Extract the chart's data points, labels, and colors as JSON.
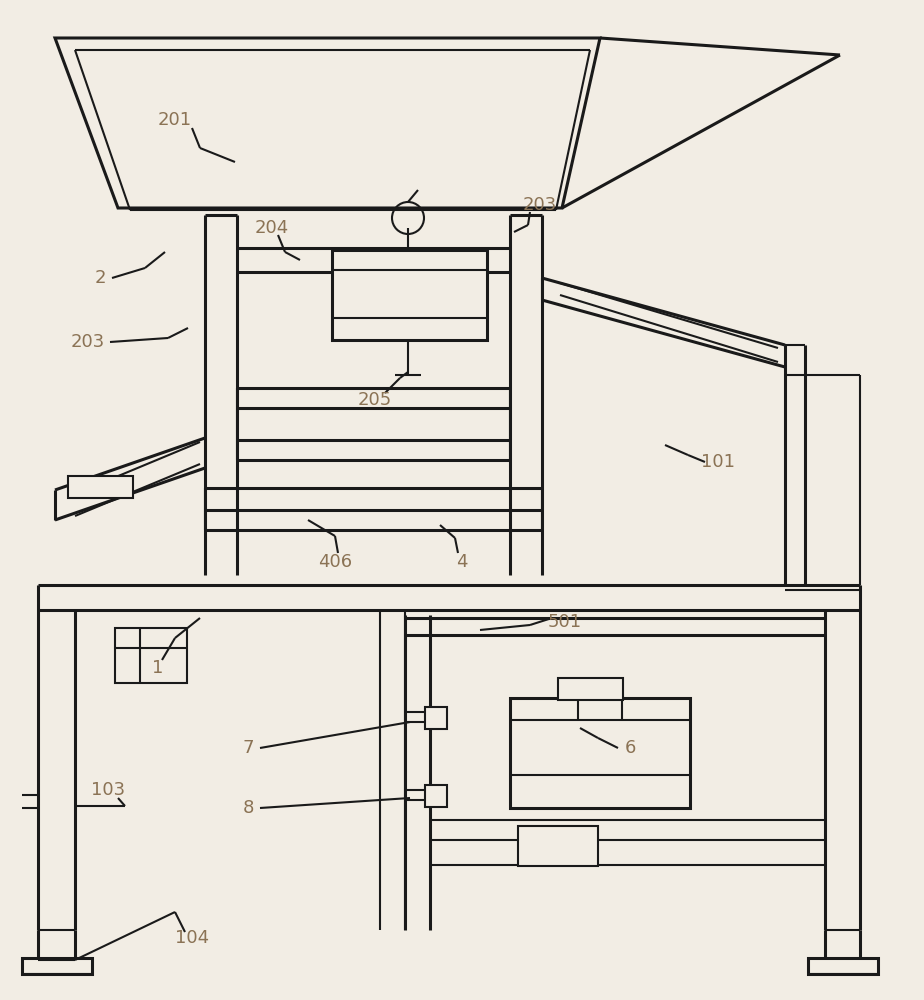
{
  "bg_color": "#f2ede4",
  "line_color": "#1a1a1a",
  "label_color": "#8B7355",
  "lw": 1.5,
  "lw2": 2.2
}
